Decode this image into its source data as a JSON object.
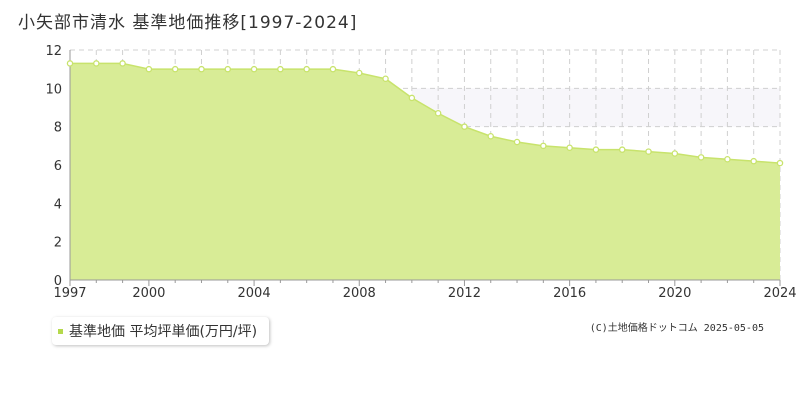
{
  "title": "小矢部市清水 基準地価推移[1997-2024]",
  "legend": {
    "label": "基準地価 平均坪単価(万円/坪)",
    "color": "#b5d94c"
  },
  "source": "(C)土地価格ドットコム 2025-05-05",
  "colors": {
    "area_fill": "#d8ec96",
    "line": "#c8e36c",
    "band_fill": "#f7f6fa",
    "grid": "#d0d0d0",
    "axis": "#999999"
  },
  "chart_data": {
    "type": "area",
    "x": [
      1997,
      1998,
      1999,
      2000,
      2001,
      2002,
      2003,
      2004,
      2005,
      2006,
      2007,
      2008,
      2009,
      2010,
      2011,
      2012,
      2013,
      2014,
      2015,
      2016,
      2017,
      2018,
      2019,
      2020,
      2021,
      2022,
      2023,
      2024
    ],
    "series": [
      {
        "name": "基準地価 平均坪単価(万円/坪)",
        "values": [
          11.3,
          11.3,
          11.3,
          11.0,
          11.0,
          11.0,
          11.0,
          11.0,
          11.0,
          11.0,
          11.0,
          10.8,
          10.5,
          9.5,
          8.7,
          8.0,
          7.5,
          7.2,
          7.0,
          6.9,
          6.8,
          6.8,
          6.7,
          6.6,
          6.4,
          6.3,
          6.2,
          6.1
        ]
      }
    ],
    "xlim": [
      1997,
      2024
    ],
    "ylim": [
      0,
      12
    ],
    "x_ticks": [
      1997,
      2000,
      2004,
      2008,
      2012,
      2016,
      2020,
      2024
    ],
    "y_ticks": [
      0,
      2,
      4,
      6,
      8,
      10,
      12
    ],
    "grid": true,
    "legend_position": "bottom-left"
  }
}
